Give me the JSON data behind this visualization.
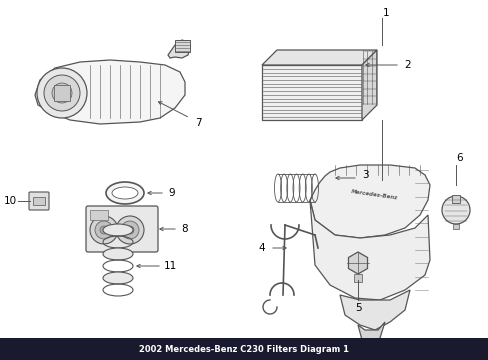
{
  "title": "2002 Mercedes-Benz C230 Filters Diagram 1",
  "background_color": "#ffffff",
  "line_color": "#555555",
  "label_color": "#000000",
  "figsize": [
    4.89,
    3.6
  ],
  "dpi": 100
}
